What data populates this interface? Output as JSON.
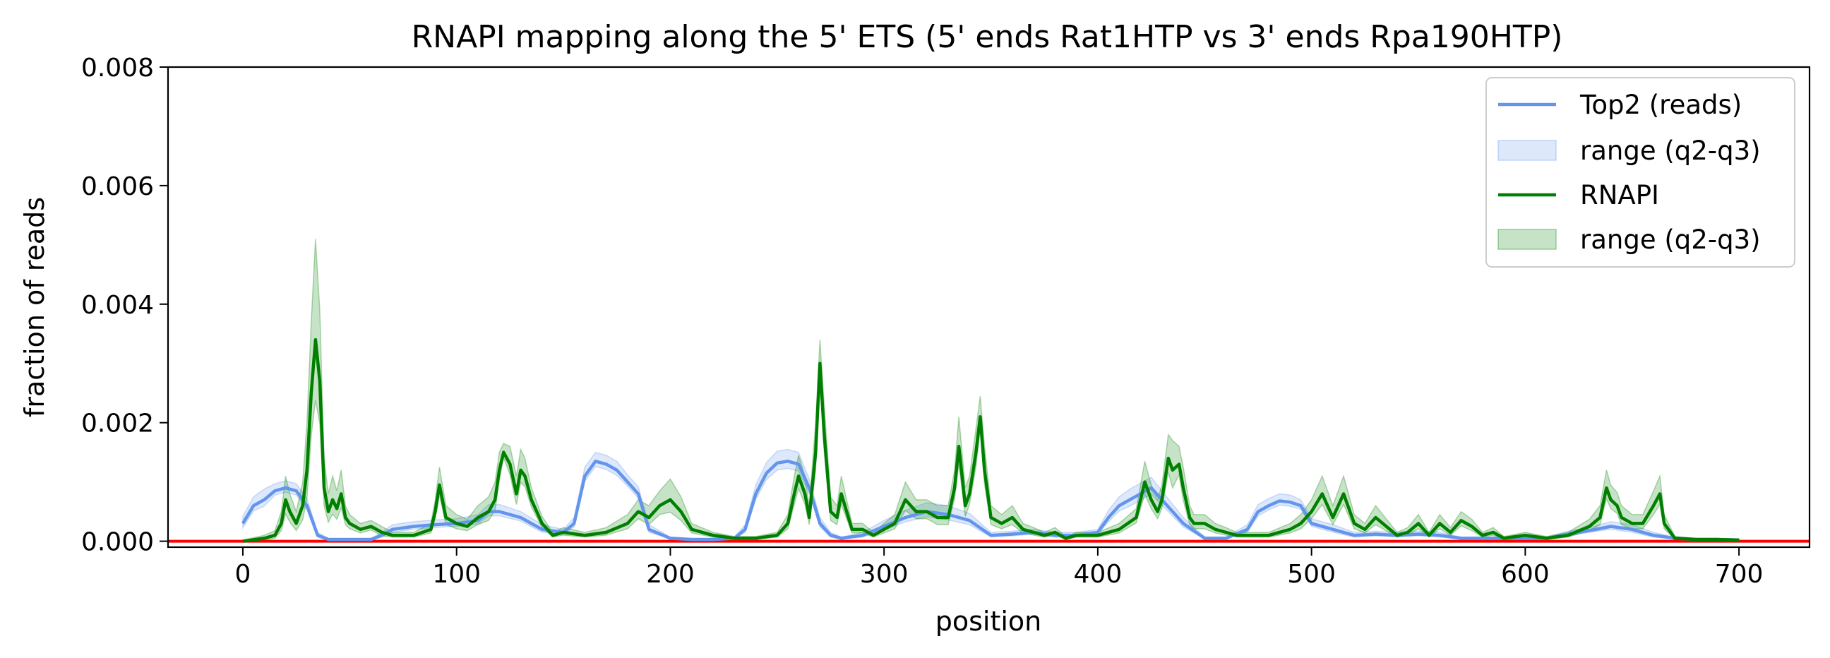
{
  "chart_data": {
    "type": "line",
    "title": "RNAPI mapping along the 5' ETS (5' ends Rat1HTP vs 3' ends Rpa190HTP)",
    "xlabel": "position",
    "ylabel": "fraction of reads",
    "xlim": [
      -35,
      733
    ],
    "ylim": [
      -0.0001,
      0.008
    ],
    "xticks": [
      0,
      100,
      200,
      300,
      400,
      500,
      600,
      700
    ],
    "yticks": [
      0.0,
      0.002,
      0.004,
      0.006,
      0.008
    ],
    "ytick_labels": [
      "0.000",
      "0.002",
      "0.004",
      "0.006",
      "0.008"
    ],
    "grid": false,
    "legend_position": "top-right",
    "legend": [
      {
        "label": "Top2 (reads)",
        "kind": "line",
        "color": "#6495ED"
      },
      {
        "label": "range (q2-q3)",
        "kind": "band",
        "color": "#6495ED"
      },
      {
        "label": "RNAPI",
        "kind": "line",
        "color": "#008000"
      },
      {
        "label": "range (q2-q3)",
        "kind": "band",
        "color": "#008000"
      }
    ],
    "reference_line": {
      "y": 0.0,
      "color": "#ff0000"
    },
    "series": [
      {
        "name": "Top2 (reads)",
        "color": "#6495ED",
        "band_color": "#6495ED",
        "x": [
          0,
          5,
          10,
          15,
          20,
          25,
          30,
          35,
          40,
          50,
          60,
          65,
          70,
          80,
          90,
          100,
          110,
          115,
          120,
          130,
          140,
          150,
          155,
          160,
          165,
          170,
          175,
          180,
          185,
          190,
          200,
          210,
          220,
          230,
          235,
          240,
          245,
          250,
          255,
          260,
          265,
          270,
          275,
          280,
          290,
          300,
          310,
          320,
          330,
          340,
          350,
          360,
          370,
          380,
          390,
          400,
          405,
          410,
          415,
          420,
          425,
          430,
          440,
          450,
          460,
          470,
          475,
          480,
          485,
          490,
          495,
          500,
          510,
          520,
          530,
          540,
          550,
          560,
          570,
          580,
          590,
          600,
          610,
          620,
          630,
          640,
          650,
          660,
          670,
          680,
          690,
          700
        ],
        "y": [
          0.0003,
          0.0006,
          0.0007,
          0.00085,
          0.0009,
          0.00085,
          0.0006,
          0.0001,
          3e-05,
          3e-05,
          3e-05,
          0.0001,
          0.0002,
          0.00025,
          0.00028,
          0.0003,
          0.00035,
          0.0005,
          0.0005,
          0.0004,
          0.0002,
          0.00015,
          0.0003,
          0.0011,
          0.00135,
          0.0013,
          0.0012,
          0.001,
          0.0008,
          0.0002,
          5e-05,
          3e-05,
          3e-05,
          5e-05,
          0.0002,
          0.0008,
          0.00115,
          0.00132,
          0.00135,
          0.0013,
          0.0009,
          0.0003,
          0.0001,
          5e-05,
          0.0001,
          0.00025,
          0.0004,
          0.0005,
          0.00045,
          0.00035,
          0.0001,
          0.00012,
          0.00015,
          0.0001,
          0.0001,
          0.00015,
          0.0004,
          0.0006,
          0.0007,
          0.0008,
          0.0009,
          0.0007,
          0.0003,
          5e-05,
          5e-05,
          0.0002,
          0.0005,
          0.0006,
          0.00068,
          0.00066,
          0.0006,
          0.0003,
          0.0002,
          0.0001,
          0.00012,
          0.0001,
          0.00012,
          0.0001,
          5e-05,
          5e-05,
          5e-05,
          5e-05,
          5e-05,
          0.00012,
          0.00018,
          0.00025,
          0.0002,
          0.0001,
          5e-05,
          3e-05,
          3e-05,
          2e-05
        ],
        "band": [
          0.00012,
          0.00015,
          0.00018,
          0.00012,
          0.00012,
          0.00012,
          0.00012,
          5e-05,
          2e-05,
          2e-05,
          2e-05,
          5e-05,
          8e-05,
          8e-05,
          8e-05,
          8e-05,
          0.0001,
          0.00012,
          0.00012,
          0.0001,
          8e-05,
          5e-05,
          0.0001,
          0.00015,
          0.00015,
          0.00015,
          0.00015,
          0.00012,
          0.00012,
          8e-05,
          2e-05,
          2e-05,
          2e-05,
          2e-05,
          8e-05,
          0.00015,
          0.00018,
          0.0002,
          0.0002,
          0.0002,
          0.00015,
          0.0001,
          5e-05,
          2e-05,
          5e-05,
          0.0001,
          0.00012,
          0.00015,
          0.00015,
          0.00012,
          5e-05,
          5e-05,
          5e-05,
          5e-05,
          5e-05,
          5e-05,
          0.00012,
          0.00015,
          0.00018,
          0.00018,
          0.00018,
          0.00015,
          0.0001,
          2e-05,
          2e-05,
          8e-05,
          0.00012,
          0.00012,
          0.00012,
          0.00012,
          0.0001,
          8e-05,
          8e-05,
          5e-05,
          5e-05,
          5e-05,
          5e-05,
          5e-05,
          2e-05,
          2e-05,
          2e-05,
          2e-05,
          2e-05,
          5e-05,
          5e-05,
          8e-05,
          8e-05,
          5e-05,
          2e-05,
          2e-05,
          2e-05,
          2e-05
        ]
      },
      {
        "name": "RNAPI",
        "color": "#008000",
        "band_color": "#008000",
        "x": [
          0,
          10,
          15,
          18,
          20,
          22,
          25,
          28,
          30,
          32,
          34,
          36,
          38,
          40,
          42,
          44,
          46,
          48,
          50,
          55,
          60,
          65,
          70,
          80,
          88,
          90,
          92,
          95,
          100,
          105,
          110,
          115,
          118,
          120,
          122,
          125,
          128,
          130,
          132,
          135,
          140,
          145,
          150,
          160,
          170,
          180,
          185,
          190,
          195,
          200,
          205,
          210,
          220,
          230,
          240,
          250,
          255,
          258,
          260,
          263,
          265,
          268,
          270,
          272,
          275,
          278,
          280,
          285,
          290,
          295,
          300,
          305,
          310,
          315,
          320,
          325,
          330,
          333,
          335,
          338,
          340,
          343,
          345,
          347,
          350,
          355,
          360,
          365,
          370,
          375,
          380,
          385,
          390,
          400,
          410,
          418,
          422,
          425,
          428,
          430,
          433,
          435,
          438,
          440,
          443,
          445,
          450,
          455,
          460,
          465,
          470,
          480,
          490,
          495,
          500,
          505,
          510,
          515,
          520,
          525,
          530,
          540,
          545,
          550,
          555,
          560,
          565,
          570,
          575,
          580,
          585,
          590,
          600,
          610,
          620,
          630,
          635,
          638,
          640,
          643,
          645,
          650,
          655,
          660,
          663,
          665,
          670,
          680,
          690,
          700
        ],
        "y": [
          0,
          5e-05,
          0.0001,
          0.0003,
          0.0007,
          0.0005,
          0.0003,
          0.0006,
          0.0012,
          0.0025,
          0.0034,
          0.0027,
          0.0009,
          0.0005,
          0.0007,
          0.00055,
          0.0008,
          0.0004,
          0.0003,
          0.0002,
          0.00025,
          0.00015,
          0.0001,
          0.0001,
          0.0002,
          0.0005,
          0.00095,
          0.0004,
          0.0003,
          0.00025,
          0.0004,
          0.0005,
          0.0007,
          0.0012,
          0.0015,
          0.0013,
          0.0008,
          0.0012,
          0.0011,
          0.0007,
          0.0003,
          0.0001,
          0.00015,
          0.0001,
          0.00015,
          0.0003,
          0.0005,
          0.0004,
          0.0006,
          0.0007,
          0.0005,
          0.0002,
          0.0001,
          5e-05,
          5e-05,
          0.0001,
          0.0003,
          0.0008,
          0.0011,
          0.0008,
          0.0004,
          0.0015,
          0.003,
          0.0018,
          0.0005,
          0.0004,
          0.0008,
          0.0002,
          0.0002,
          0.0001,
          0.0002,
          0.0003,
          0.0007,
          0.0005,
          0.0005,
          0.0004,
          0.0004,
          0.0009,
          0.0016,
          0.0006,
          0.0008,
          0.0015,
          0.0021,
          0.0012,
          0.0004,
          0.0003,
          0.0004,
          0.0002,
          0.00015,
          0.0001,
          0.00015,
          5e-05,
          0.0001,
          0.0001,
          0.0002,
          0.0004,
          0.001,
          0.0007,
          0.0005,
          0.0007,
          0.0014,
          0.0012,
          0.0013,
          0.0009,
          0.0004,
          0.0003,
          0.0003,
          0.0002,
          0.00015,
          0.0001,
          0.0001,
          0.0001,
          0.0002,
          0.0003,
          0.0005,
          0.0008,
          0.0004,
          0.0008,
          0.0003,
          0.0002,
          0.0004,
          0.0001,
          0.00015,
          0.0003,
          0.0001,
          0.0003,
          0.00015,
          0.00035,
          0.00025,
          0.0001,
          0.00015,
          5e-05,
          0.0001,
          5e-05,
          0.0001,
          0.00025,
          0.0004,
          0.0009,
          0.0007,
          0.0006,
          0.0004,
          0.0003,
          0.0003,
          0.0006,
          0.0008,
          0.0003,
          5e-05,
          3e-05,
          3e-05,
          2e-05
        ],
        "band": [
          2e-05,
          5e-05,
          8e-05,
          0.0002,
          0.0004,
          0.0003,
          0.0002,
          0.0004,
          0.0008,
          0.0012,
          0.0017,
          0.0012,
          0.0005,
          0.0003,
          0.0004,
          0.0003,
          0.0004,
          0.0002,
          0.00015,
          0.0001,
          0.0001,
          0.0001,
          5e-05,
          5e-05,
          0.0001,
          0.0002,
          0.0003,
          0.0002,
          0.00015,
          0.00012,
          0.0002,
          0.00025,
          0.0003,
          0.0003,
          0.00015,
          0.0003,
          0.0003,
          0.00035,
          0.0003,
          0.0002,
          0.00012,
          5e-05,
          8e-05,
          5e-05,
          8e-05,
          0.00015,
          0.0002,
          0.0002,
          0.00025,
          0.00035,
          0.00025,
          0.0001,
          5e-05,
          3e-05,
          3e-05,
          5e-05,
          0.00015,
          0.0003,
          0.00035,
          0.0003,
          0.0002,
          0.0005,
          0.0004,
          0.0005,
          0.00025,
          0.0002,
          0.0003,
          0.0001,
          0.0001,
          5e-05,
          0.0001,
          0.00015,
          0.0003,
          0.0002,
          0.0002,
          0.0002,
          0.0002,
          0.0003,
          0.0005,
          0.0003,
          0.0003,
          0.0004,
          0.00035,
          0.0004,
          0.0002,
          0.00015,
          0.0002,
          0.0001,
          8e-05,
          5e-05,
          8e-05,
          3e-05,
          5e-05,
          5e-05,
          0.0001,
          0.00015,
          0.00035,
          0.00025,
          0.0002,
          0.00025,
          0.0004,
          0.0005,
          0.0003,
          0.00035,
          0.0002,
          0.00015,
          0.00015,
          0.0001,
          8e-05,
          5e-05,
          5e-05,
          5e-05,
          0.0001,
          0.00015,
          0.0002,
          0.0003,
          0.0002,
          0.0003,
          0.00015,
          0.0001,
          0.0002,
          5e-05,
          8e-05,
          0.00015,
          5e-05,
          0.00015,
          8e-05,
          0.00015,
          0.00012,
          5e-05,
          8e-05,
          3e-05,
          5e-05,
          3e-05,
          5e-05,
          0.00012,
          0.0002,
          0.0003,
          0.00025,
          0.00022,
          0.0002,
          0.00015,
          0.00015,
          0.00025,
          0.0003,
          0.00015,
          3e-05,
          2e-05,
          2e-05,
          1e-05
        ]
      }
    ]
  }
}
